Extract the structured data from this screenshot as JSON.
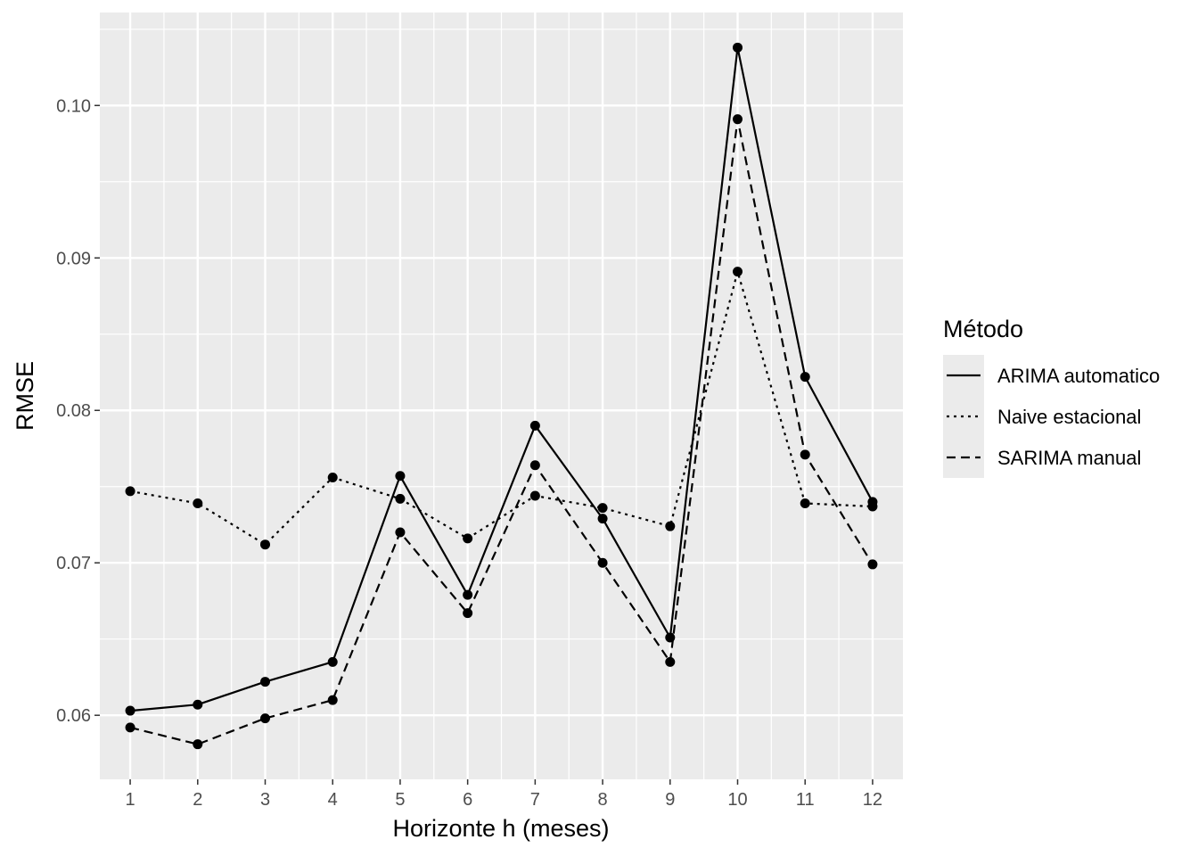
{
  "chart_data": {
    "type": "line",
    "xlabel": "Horizonte h (meses)",
    "ylabel": "RMSE",
    "x": [
      1,
      2,
      3,
      4,
      5,
      6,
      7,
      8,
      9,
      10,
      11,
      12
    ],
    "x_ticks": [
      "1",
      "2",
      "3",
      "4",
      "5",
      "6",
      "7",
      "8",
      "9",
      "10",
      "11",
      "12"
    ],
    "y_ticks": [
      "0.06",
      "0.07",
      "0.08",
      "0.09",
      "0.10"
    ],
    "y_tick_values": [
      0.06,
      0.07,
      0.08,
      0.09,
      0.1
    ],
    "xlim": [
      0.55,
      12.45
    ],
    "ylim": [
      0.0558,
      0.1061
    ],
    "grid": true,
    "legend": {
      "title": "Método",
      "placement": "right"
    },
    "series": [
      {
        "name": "ARIMA automatico",
        "linetype": "solid",
        "values": [
          0.0603,
          0.0607,
          0.0622,
          0.0635,
          0.0757,
          0.0679,
          0.079,
          0.0729,
          0.0651,
          0.1038,
          0.0822,
          0.074
        ]
      },
      {
        "name": "Naive estacional",
        "linetype": "dotted",
        "values": [
          0.0747,
          0.0739,
          0.0712,
          0.0756,
          0.0742,
          0.0716,
          0.0744,
          0.0736,
          0.0724,
          0.0891,
          0.0739,
          0.0737
        ]
      },
      {
        "name": "SARIMA manual",
        "linetype": "dashed",
        "values": [
          0.0592,
          0.0581,
          0.0598,
          0.061,
          0.072,
          0.0667,
          0.0764,
          0.07,
          0.0635,
          0.0991,
          0.0771,
          0.0699
        ]
      }
    ],
    "colors": {
      "panel": "#ebebeb",
      "grid": "#ffffff",
      "line": "#000000",
      "tick_text": "#4d4d4d"
    }
  }
}
